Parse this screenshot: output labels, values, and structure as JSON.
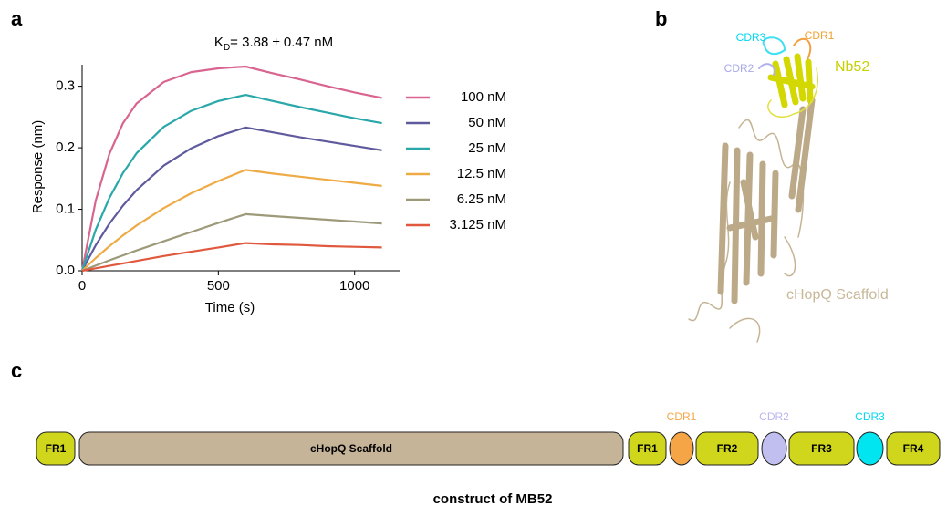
{
  "panel_labels": [
    "a",
    "b",
    "c"
  ],
  "chart_data": {
    "type": "line",
    "title_prefix": "K",
    "title_subscript": "D",
    "title_suffix": "= 3.88 ± 0.47 nM",
    "x_label": "Time (s)",
    "y_label": "Response (nm)",
    "x": [
      0,
      50,
      100,
      150,
      200,
      300,
      400,
      500,
      600,
      700,
      800,
      900,
      1000,
      1100
    ],
    "series": [
      {
        "name": "100 nM",
        "color": "#d8648f",
        "values": [
          0,
          0.114,
          0.19,
          0.24,
          0.272,
          0.307,
          0.323,
          0.329,
          0.332,
          0.321,
          0.311,
          0.3,
          0.29,
          0.281
        ]
      },
      {
        "name": "50 nM",
        "color": "#5f5a9e",
        "values": [
          0,
          0.0415,
          0.0765,
          0.106,
          0.131,
          0.171,
          0.199,
          0.219,
          0.233,
          0.225,
          0.217,
          0.21,
          0.203,
          0.196
        ]
      },
      {
        "name": "25 nM",
        "color": "#2aa7a9",
        "values": [
          0,
          0.0666,
          0.1184,
          0.159,
          0.191,
          0.234,
          0.26,
          0.276,
          0.286,
          0.276,
          0.266,
          0.257,
          0.248,
          0.24
        ]
      },
      {
        "name": "12.5 nM",
        "color": "#eeab45",
        "values": [
          0,
          0.0208,
          0.04,
          0.0575,
          0.0737,
          0.102,
          0.126,
          0.146,
          0.164,
          0.158,
          0.153,
          0.148,
          0.143,
          0.138
        ]
      },
      {
        "name": "6.25 nM",
        "color": "#9d9a7a",
        "values": [
          0,
          0.0085,
          0.017,
          0.025,
          0.033,
          0.048,
          0.063,
          0.078,
          0.092,
          0.089,
          0.086,
          0.083,
          0.08,
          0.077
        ]
      },
      {
        "name": "3.125 nM",
        "color": "#e0593e",
        "values": [
          0,
          0.004,
          0.008,
          0.012,
          0.016,
          0.024,
          0.031,
          0.038,
          0.045,
          0.043,
          0.042,
          0.04,
          0.039,
          0.038
        ]
      }
    ],
    "xlim": [
      0,
      1165
    ],
    "ylim": [
      0,
      0.335
    ],
    "xticks": [
      0,
      500,
      1000
    ],
    "yticks": [
      {
        "value": 0,
        "label": "0.0"
      },
      0.1,
      0.2,
      0.3
    ]
  },
  "structure": {
    "cdr3": "CDR3",
    "cdr1": "CDR1",
    "cdr2": "CDR2",
    "nanobody": "Nb52",
    "scaffold": "cHopQ Scaffold"
  },
  "construct": {
    "segments": [
      "FR1",
      "cHopQ Scaffold",
      "FR1",
      "",
      "FR2",
      "",
      "FR3",
      "",
      "FR4"
    ],
    "cdr_labels": [
      "CDR1",
      "CDR2",
      "CDR3"
    ],
    "caption": "construct of MB52"
  }
}
